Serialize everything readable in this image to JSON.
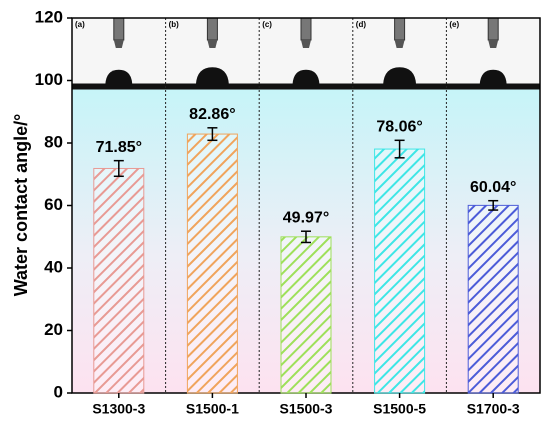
{
  "chart_data": {
    "type": "bar",
    "y_label": "Water contact angle/°",
    "categories": [
      "S1300-3",
      "S1500-1",
      "S1500-3",
      "S1500-5",
      "S1700-3"
    ],
    "values": [
      71.85,
      82.86,
      49.97,
      78.06,
      60.04
    ],
    "value_labels": [
      "71.85°",
      "82.86°",
      "49.97°",
      "78.06°",
      "60.04°"
    ],
    "errors": [
      2.5,
      2,
      1.8,
      2.8,
      1.5
    ],
    "colors": [
      "#e89a94",
      "#f0a45c",
      "#9ee05a",
      "#3ee6e6",
      "#4c5cd8"
    ],
    "panel_labels": [
      "(a)",
      "(b)",
      "(c)",
      "(d)",
      "(e)"
    ],
    "ylim": [
      0,
      120
    ],
    "yticks": [
      0,
      20,
      40,
      60,
      80,
      100,
      120
    ]
  }
}
